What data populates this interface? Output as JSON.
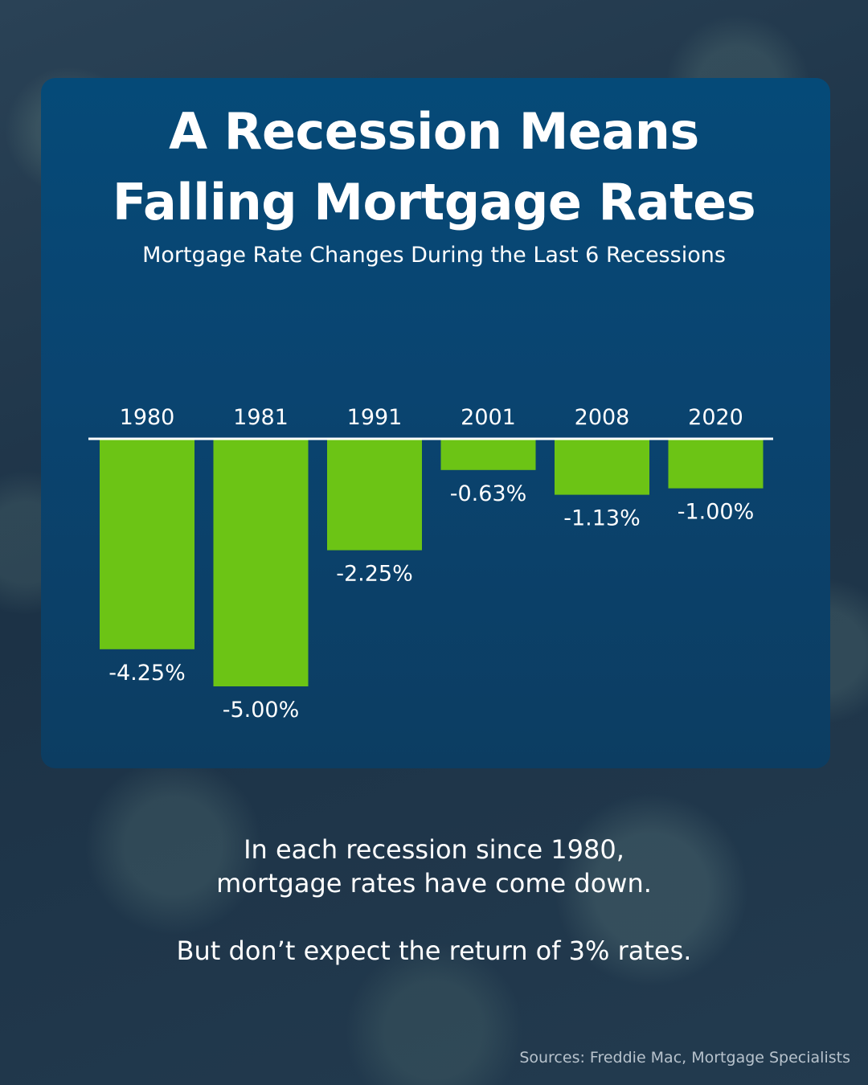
{
  "title": {
    "line1": "A Recession Means",
    "line2": "Falling Mortgage Rates"
  },
  "subtitle": "Mortgage Rate Changes During the Last 6 Recessions",
  "chart_data": {
    "type": "bar",
    "title": "A Recession Means Falling Mortgage Rates",
    "subtitle": "Mortgage Rate Changes During the Last 6 Recessions",
    "categories": [
      "1980",
      "1981",
      "1991",
      "2001",
      "2008",
      "2020"
    ],
    "values": [
      -4.25,
      -5.0,
      -2.25,
      -0.63,
      -1.13,
      -1.0
    ],
    "value_labels": [
      "-4.25%",
      "-5.00%",
      "-2.25%",
      "-0.63%",
      "-1.13%",
      "-1.00%"
    ],
    "ylim": [
      -5,
      0
    ],
    "xlabel": "",
    "ylabel": "",
    "grid": false,
    "bar_color": "#6cc415"
  },
  "footer": {
    "line1": "In each recession since 1980,",
    "line2": "mortgage rates have come down.",
    "line3": "But don’t expect the return of 3% rates."
  },
  "source": "Sources: Freddie Mac, Mortgage Specialists",
  "colors": {
    "card": "#0a4470",
    "accent_bar": "#6cc415",
    "text": "#ffffff"
  }
}
